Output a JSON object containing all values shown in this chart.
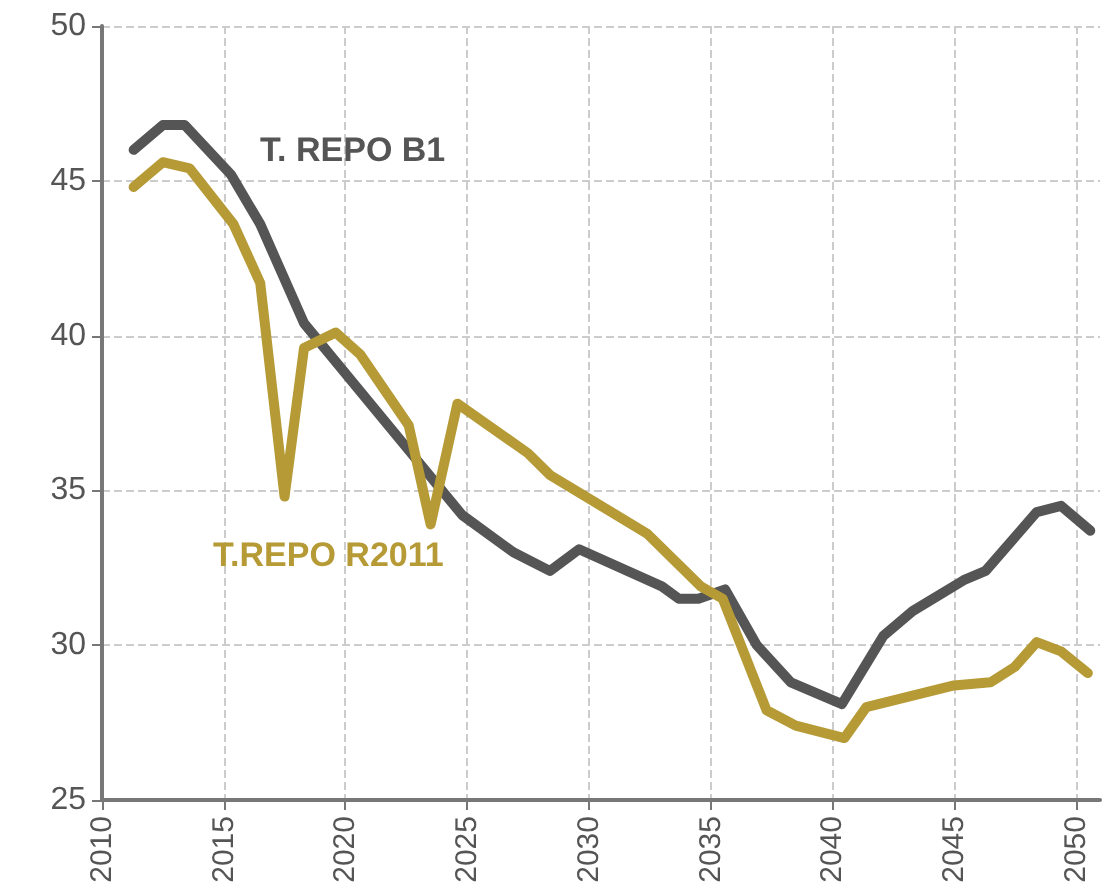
{
  "chart_data": {
    "type": "line",
    "xlim": [
      2010,
      2051
    ],
    "xticks": [
      2010,
      2015,
      2020,
      2025,
      2030,
      2035,
      2040,
      2045,
      2050
    ],
    "ylim": [
      25,
      50
    ],
    "yticks": [
      25,
      30,
      35,
      40,
      45,
      50
    ],
    "grid": true,
    "legend": false,
    "marker": "none",
    "line_style": "solid",
    "series": [
      {
        "name": "T. REPO B1",
        "color": "#555555",
        "x": [
          2011.3,
          2012.5,
          2013.4,
          2015.3,
          2016.5,
          2018.3,
          2022.6,
          2024.8,
          2026.9,
          2028.4,
          2029.6,
          2033,
          2033.7,
          2034.5,
          2035.6,
          2036.9,
          2038.3,
          2040.4,
          2042.1,
          2043.3,
          2045.4,
          2046.3,
          2048.4,
          2049.4,
          2050.6
        ],
        "values": [
          46.0,
          46.8,
          46.8,
          45.2,
          43.6,
          40.4,
          36.3,
          34.2,
          33.0,
          32.4,
          33.1,
          31.9,
          31.5,
          31.5,
          31.8,
          30.0,
          28.8,
          28.1,
          30.3,
          31.1,
          32.1,
          32.4,
          34.3,
          34.5,
          33.7
        ]
      },
      {
        "name": "T.REPO R2011",
        "color": "#b59a35",
        "x": [
          2011.3,
          2012.5,
          2013.6,
          2015.4,
          2016.5,
          2017.5,
          2018.3,
          2019.6,
          2020.6,
          2022.6,
          2023.5,
          2024.6,
          2027.5,
          2028.4,
          2032.4,
          2034.6,
          2035.5,
          2037.3,
          2038.5,
          2040.5,
          2041.4,
          2045,
          2046.5,
          2047.5,
          2048.4,
          2049.4,
          2050.5
        ],
        "values": [
          44.8,
          45.6,
          45.4,
          43.6,
          41.7,
          34.8,
          39.6,
          40.1,
          39.4,
          37.1,
          33.9,
          37.8,
          36.2,
          35.5,
          33.6,
          31.9,
          31.5,
          27.9,
          27.4,
          27.0,
          28.0,
          28.7,
          28.8,
          29.3,
          30.1,
          29.8,
          29.1
        ]
      }
    ]
  }
}
